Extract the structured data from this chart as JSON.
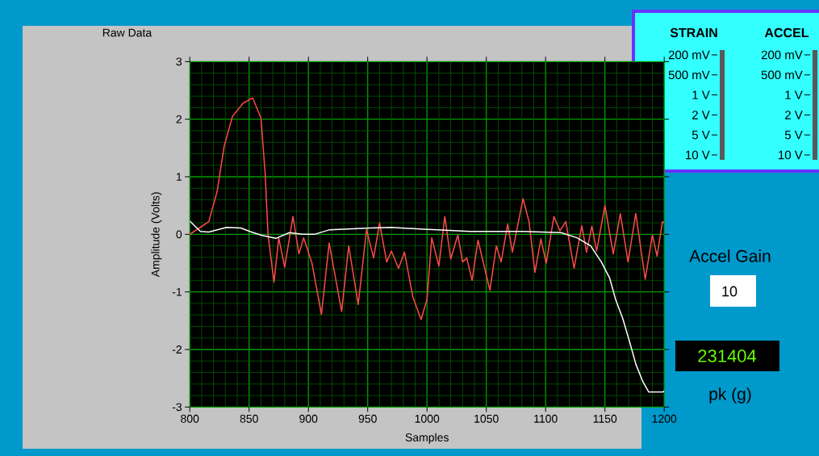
{
  "chart_data": [
    {
      "type": "line",
      "title": "Raw Data",
      "xlabel": "Samples",
      "ylabel": "Amplitude (Volts)",
      "xlim": [
        800,
        1200
      ],
      "ylim": [
        -3,
        3
      ],
      "xticks": [
        800,
        {
          "value": 810,
          "label": null
        },
        {
          "value": 820,
          "label": null
        },
        {
          "value": 830,
          "label": null
        },
        {
          "value": 840,
          "label": null
        },
        850,
        {
          "value": 860,
          "label": null
        },
        {
          "value": 870,
          "label": null
        },
        {
          "value": 880,
          "label": null
        },
        {
          "value": 890,
          "label": null
        },
        900,
        {
          "value": 910,
          "label": null
        },
        {
          "value": 920,
          "label": null
        },
        {
          "value": 930,
          "label": null
        },
        {
          "value": 940,
          "label": null
        },
        950,
        {
          "value": 960,
          "label": null
        },
        {
          "value": 970,
          "label": null
        },
        {
          "value": 980,
          "label": null
        },
        {
          "value": 990,
          "label": null
        },
        1000,
        {
          "value": 1010,
          "label": null
        },
        {
          "value": 1020,
          "label": null
        },
        {
          "value": 1030,
          "label": null
        },
        {
          "value": 1040,
          "label": null
        },
        1050,
        {
          "value": 1060,
          "label": null
        },
        {
          "value": 1070,
          "label": null
        },
        {
          "value": 1080,
          "label": null
        },
        {
          "value": 1090,
          "label": null
        },
        1100,
        {
          "value": 1110,
          "label": null
        },
        {
          "value": 1120,
          "label": null
        },
        {
          "value": 1130,
          "label": null
        },
        {
          "value": 1140,
          "label": null
        },
        1150,
        {
          "value": 1160,
          "label": null
        },
        {
          "value": 1170,
          "label": null
        },
        {
          "value": 1180,
          "label": null
        },
        {
          "value": 1190,
          "label": null
        },
        1200
      ],
      "yticks": [
        -3,
        {
          "value": -2.8,
          "label": null
        },
        {
          "value": -2.6,
          "label": null
        },
        {
          "value": -2.4,
          "label": null
        },
        {
          "value": -2.2,
          "label": null
        },
        -2,
        {
          "value": -1.8,
          "label": null
        },
        {
          "value": -1.6,
          "label": null
        },
        {
          "value": -1.4,
          "label": null
        },
        {
          "value": -1.2,
          "label": null
        },
        -1,
        {
          "value": -0.8,
          "label": null
        },
        {
          "value": -0.6,
          "label": null
        },
        {
          "value": -0.4,
          "label": null
        },
        {
          "value": -0.2,
          "label": null
        },
        0,
        {
          "value": 0.2,
          "label": null
        },
        {
          "value": 0.4,
          "label": null
        },
        {
          "value": 0.6,
          "label": null
        },
        {
          "value": 0.8,
          "label": null
        },
        1,
        {
          "value": 1.2,
          "label": null
        },
        {
          "value": 1.4,
          "label": null
        },
        {
          "value": 1.6,
          "label": null
        },
        {
          "value": 1.8,
          "label": null
        },
        2,
        {
          "value": 2.2,
          "label": null
        },
        {
          "value": 2.4,
          "label": null
        },
        {
          "value": 2.6,
          "label": null
        },
        {
          "value": 2.8,
          "label": null
        },
        3
      ],
      "grid": true,
      "marker": "none",
      "line_style": "solid",
      "series": [
        {
          "color": "#ff4a4a",
          "x": [
            800,
            816,
            823,
            829,
            836,
            845,
            853,
            860,
            863.5,
            866,
            871,
            875,
            880,
            887,
            892,
            896,
            903,
            911,
            917.5,
            928,
            934,
            942,
            949,
            955,
            960,
            966,
            970,
            976,
            981,
            988,
            995,
            1000,
            1004,
            1010,
            1015,
            1020,
            1026,
            1030,
            1033.5,
            1038,
            1043,
            1053,
            1058.5,
            1062.5,
            1068,
            1072,
            1081,
            1086,
            1091,
            1096,
            1100.5,
            1107,
            1112,
            1117,
            1124,
            1130.5,
            1134.5,
            1139,
            1143,
            1150,
            1157,
            1163,
            1169.5,
            1176,
            1184,
            1190,
            1194,
            1198.5,
            1200
          ],
          "values": [
            0,
            0.22,
            0.74,
            1.53,
            2.05,
            2.28,
            2.37,
            2.02,
            1.07,
            -0.01,
            -0.83,
            -0.06,
            -0.57,
            0.31,
            -0.34,
            -0.06,
            -0.5,
            -1.39,
            -0.15,
            -1.34,
            -0.2,
            -1.22,
            0.08,
            -0.41,
            0.2,
            -0.48,
            -0.29,
            -0.59,
            -0.31,
            -1.08,
            -1.48,
            -1.13,
            -0.06,
            -0.55,
            0.31,
            -0.43,
            -0.01,
            -0.48,
            -0.41,
            -0.8,
            -0.1,
            -0.97,
            -0.2,
            -0.48,
            0.18,
            -0.31,
            0.62,
            0.22,
            -0.66,
            -0.08,
            -0.5,
            0.31,
            0.06,
            0.22,
            -0.59,
            0.15,
            -0.31,
            0.14,
            -0.29,
            0.5,
            -0.34,
            0.36,
            -0.48,
            0.36,
            -0.78,
            -0.01,
            -0.38,
            0.22,
            0.2
          ]
        },
        {
          "color": "#ffffff",
          "x": [
            800,
            809,
            816,
            831,
            843,
            852,
            861,
            872.5,
            884,
            895,
            905,
            918,
            952,
            970,
            997,
            1009,
            1036,
            1081,
            1113,
            1126.5,
            1138,
            1147,
            1154,
            1159,
            1165,
            1171,
            1176,
            1182,
            1187,
            1199,
            1200
          ],
          "values": [
            0.23,
            0.05,
            0.04,
            0.12,
            0.11,
            0.04,
            -0.02,
            -0.07,
            0.03,
            0,
            0,
            0.08,
            0.11,
            0.12,
            0.09,
            0.08,
            0.05,
            0.05,
            0.03,
            -0.06,
            -0.2,
            -0.48,
            -0.76,
            -1.13,
            -1.46,
            -1.88,
            -2.25,
            -2.56,
            -2.74,
            -2.74,
            -2.72
          ]
        }
      ]
    },
    {
      "type": "other",
      "title": "STRAIN",
      "categories": [
        "200 mV",
        "500 mV",
        "1 V",
        "2 V",
        "5 V",
        "10 V"
      ]
    },
    {
      "type": "other",
      "title": "ACCEL",
      "categories": [
        "200 mV",
        "500 mV",
        "1 V",
        "2 V",
        "5 V",
        "10 V"
      ]
    },
    {
      "type": "other",
      "title": "Accel Gain",
      "annotations": [
        "10",
        "231404",
        "pk (g)"
      ]
    }
  ]
}
